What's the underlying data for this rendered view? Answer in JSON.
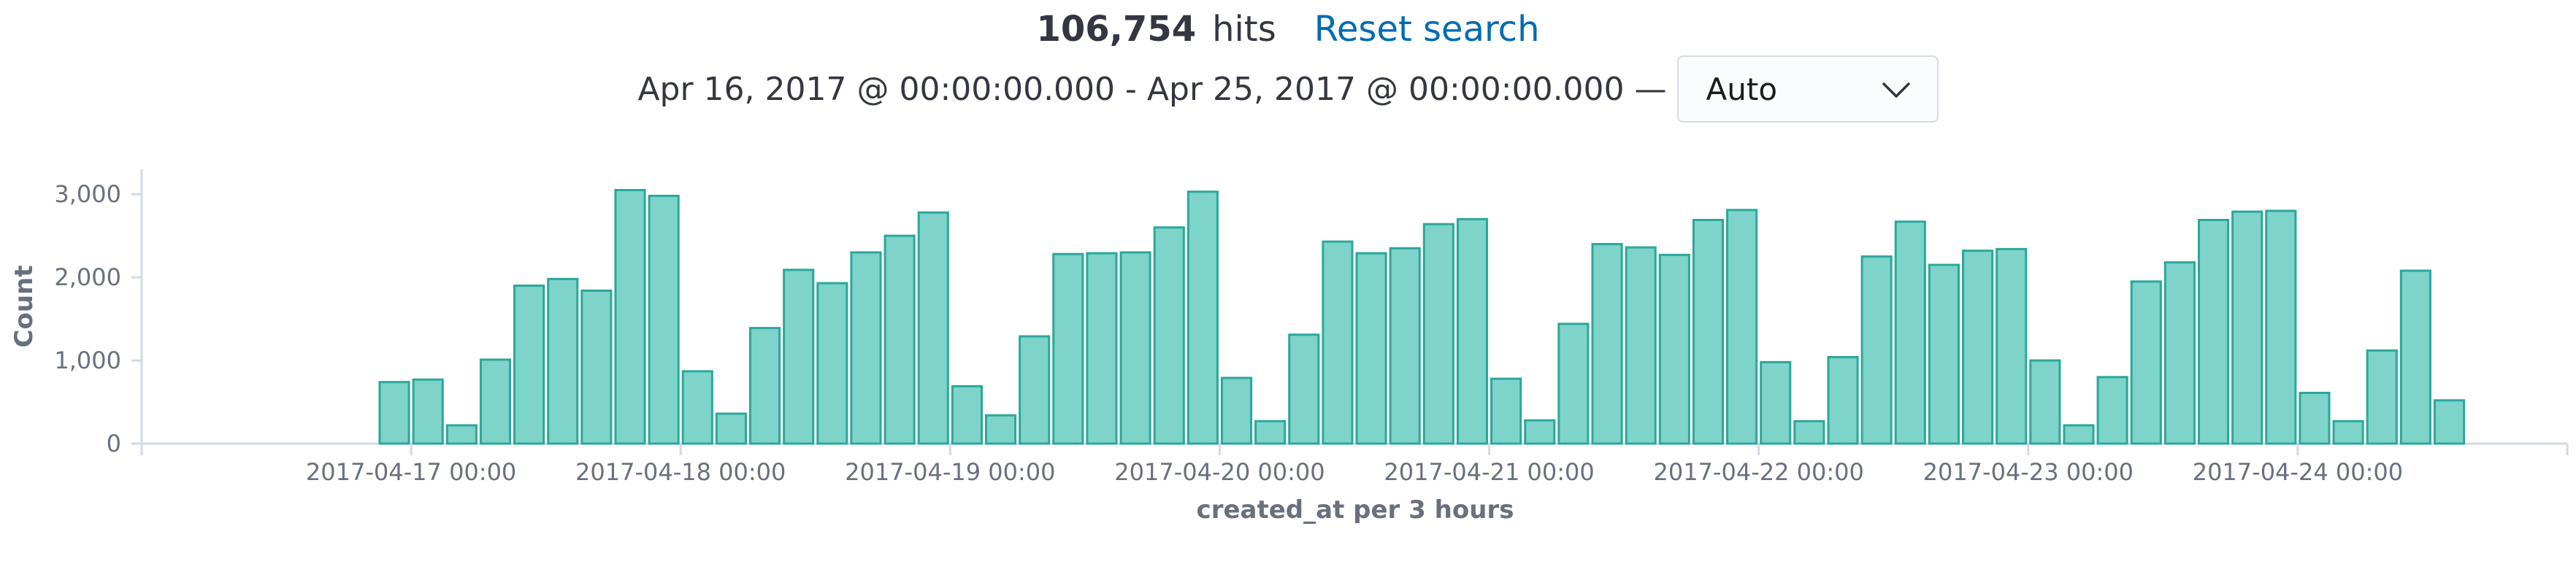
{
  "header": {
    "hits_count": "106,754",
    "hits_label": "hits",
    "reset_label": "Reset search",
    "range_start": "Apr 16, 2017 @ 00:00:00.000",
    "range_sep": "-",
    "range_end": "Apr 25, 2017 @ 00:00:00.000",
    "range_dash": "—",
    "interval_value": "Auto"
  },
  "colors": {
    "bar_fill": "#7ed3cb",
    "bar_stroke": "#2aa89a",
    "link": "#006bb4",
    "axis": "#d3dae6"
  },
  "chart_data": {
    "type": "bar",
    "xlabel": "created_at per 3 hours",
    "ylabel": "Count",
    "ylim": [
      0,
      3300
    ],
    "yticks": [
      0,
      1000,
      2000,
      3000
    ],
    "ytick_labels": [
      "0",
      "1,000",
      "2,000",
      "3,000"
    ],
    "x_start": "2017-04-16 00:00",
    "x_end": "2017-04-25 00:00",
    "bucket_hours": 3,
    "xticks": [
      "2017-04-17 00:00",
      "2017-04-18 00:00",
      "2017-04-19 00:00",
      "2017-04-20 00:00",
      "2017-04-21 00:00",
      "2017-04-22 00:00",
      "2017-04-23 00:00",
      "2017-04-24 00:00"
    ],
    "bars_start": "2017-04-16 21:00",
    "values": [
      740,
      770,
      220,
      1010,
      1900,
      1980,
      1840,
      3050,
      2980,
      870,
      360,
      1390,
      2090,
      1930,
      2300,
      2500,
      2780,
      690,
      340,
      1290,
      2280,
      2290,
      2300,
      2600,
      3030,
      790,
      270,
      1310,
      2430,
      2290,
      2350,
      2640,
      2700,
      780,
      280,
      1440,
      2400,
      2360,
      2270,
      2690,
      2810,
      980,
      270,
      1040,
      2250,
      2670,
      2150,
      2320,
      2340,
      1000,
      220,
      800,
      1950,
      2180,
      2690,
      2790,
      2800,
      610,
      270,
      1120,
      2080,
      520
    ],
    "grid": false,
    "legend": "none"
  }
}
